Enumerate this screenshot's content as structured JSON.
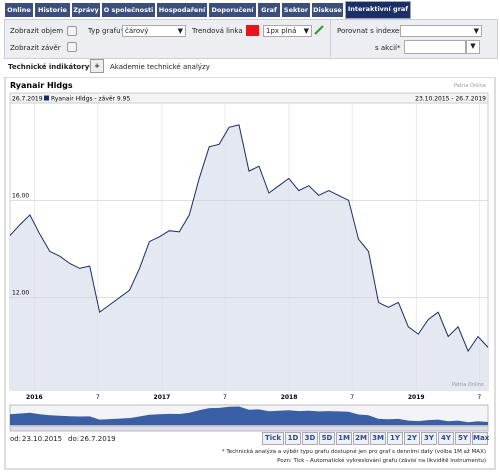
{
  "tabs": [
    "Online",
    "Historie",
    "Zprávy",
    "O společnosti",
    "Hospodaření",
    "Doporučení",
    "Graf",
    "Sektor",
    "Diskuse",
    "Interaktivní graf"
  ],
  "controls": {
    "volume": "Zobrazit objem",
    "close": "Zobrazit závěr",
    "chart_type_label": "Typ grafu*",
    "chart_type_value": "čárový",
    "trend_label": "Trendová linka",
    "trend_value": "1px plná",
    "compare_index": "Porovnat s indexem*",
    "compare_stock": "s akcií*"
  },
  "indicators": {
    "label": "Technické indikátory*:",
    "add": "+",
    "link": "Akademie technické analýzy"
  },
  "chart_data": {
    "type": "line",
    "title": "Ryanair Hldgs",
    "source": "Patria Online",
    "date": "26.7.2019",
    "range": "23.10.2015 - 26.7.2019",
    "series": [
      {
        "name": "Ryanair Hldgs - závěr 9.95",
        "color": "#1b2a66",
        "values": [
          14.55,
          15.0,
          15.4,
          14.6,
          13.9,
          13.7,
          13.4,
          13.2,
          13.3,
          11.4,
          11.7,
          12.0,
          12.3,
          13.2,
          14.3,
          14.5,
          14.75,
          14.7,
          15.4,
          16.9,
          18.2,
          18.3,
          19.0,
          19.1,
          17.2,
          17.4,
          16.3,
          16.6,
          16.9,
          16.4,
          16.6,
          16.2,
          16.4,
          16.2,
          16.0,
          14.4,
          13.9,
          11.8,
          11.6,
          11.8,
          10.8,
          10.5,
          11.1,
          11.4,
          10.4,
          10.8,
          9.8,
          10.4,
          9.95
        ]
      }
    ],
    "xtick_labels": [
      "2016",
      "7",
      "2017",
      "7",
      "2018",
      "7",
      "2019",
      "7"
    ],
    "ylim": [
      8.2,
      20
    ],
    "yticks": [
      {
        "value": 12,
        "label": "12.00"
      },
      {
        "value": 16,
        "label": "16.00"
      }
    ],
    "grid": true
  },
  "footer": {
    "from_label": "od:",
    "from": "23.10.2015",
    "to_label": "do:",
    "to": "26.7.2019",
    "buttons": [
      "Tick",
      "1D",
      "3D",
      "5D",
      "1M",
      "2M",
      "3M",
      "1Y",
      "2Y",
      "3Y",
      "4Y",
      "5Y",
      "Max"
    ],
    "notes": [
      "* Technická analýza a výběr typu grafu dostupné jen pro graf s denními daty (volba 1M až MAX)",
      "Pozn: Tick - Automatické vykreslování grafu (závisí na likviditě instrumentu)"
    ]
  }
}
